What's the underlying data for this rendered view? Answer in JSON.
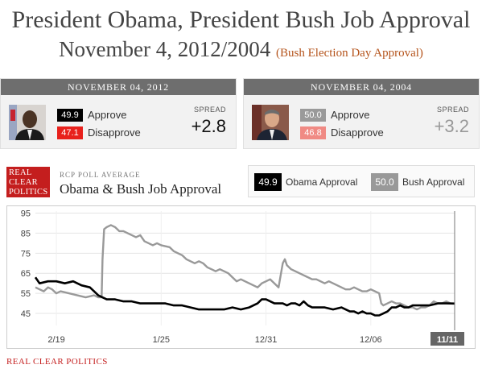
{
  "header": {
    "title_line1": "President Obama, President Bush Job Approval",
    "title_line2": "November 4, 2012/2004",
    "title_sub": "(Bush Election Day Approval)"
  },
  "cards": [
    {
      "date": "NOVEMBER 04, 2012",
      "approve_value": "49.9",
      "approve_label": "Approve",
      "disapprove_value": "47.1",
      "disapprove_label": "Disapprove",
      "spread_label": "SPREAD",
      "spread_value": "+2.8"
    },
    {
      "date": "NOVEMBER 04, 2004",
      "approve_value": "50.0",
      "approve_label": "Approve",
      "disapprove_value": "46.8",
      "disapprove_label": "Disapprove",
      "spread_label": "SPREAD",
      "spread_value": "+3.2"
    }
  ],
  "brand": {
    "logo_line1": "REAL",
    "logo_line2": "CLEAR",
    "logo_line3": "POLITICS",
    "subtitle": "RCP POLL AVERAGE",
    "chart_title": "Obama & Bush Job Approval",
    "footer": "REAL CLEAR POLITICS"
  },
  "legend": [
    {
      "value": "49.9",
      "label": "Obama Approval",
      "color": "#000000"
    },
    {
      "value": "50.0",
      "label": "Bush Approval",
      "color": "#999999"
    }
  ],
  "colors": {
    "accent": "#c41e1e",
    "disapprove_obama": "#e8211c",
    "disapprove_bush": "#f08a84",
    "bush_approve_box": "#9a9a9a",
    "obama_approve_box": "#000000"
  },
  "chart_data": {
    "type": "line",
    "x_ticks": [
      "2/19",
      "1/25",
      "12/31",
      "12/06",
      "11/11"
    ],
    "y_ticks": [
      45,
      55,
      65,
      75,
      85,
      95
    ],
    "ylim": [
      39,
      96
    ],
    "x_range": [
      0,
      100
    ],
    "x_tick_positions": [
      5,
      30,
      55,
      80,
      100
    ],
    "grid": true,
    "series": [
      {
        "name": "Obama Approval",
        "color": "#000000",
        "points": [
          [
            0,
            63
          ],
          [
            1,
            60
          ],
          [
            3,
            61
          ],
          [
            5,
            61
          ],
          [
            7,
            60
          ],
          [
            9,
            61
          ],
          [
            11,
            59
          ],
          [
            13,
            58
          ],
          [
            14,
            56
          ],
          [
            15,
            54
          ],
          [
            17,
            52
          ],
          [
            19,
            52
          ],
          [
            21,
            51
          ],
          [
            23,
            51
          ],
          [
            25,
            50
          ],
          [
            27,
            50
          ],
          [
            29,
            50
          ],
          [
            31,
            50
          ],
          [
            33,
            49
          ],
          [
            35,
            49
          ],
          [
            37,
            48
          ],
          [
            39,
            47
          ],
          [
            41,
            47
          ],
          [
            43,
            47
          ],
          [
            45,
            47
          ],
          [
            47,
            48
          ],
          [
            49,
            47
          ],
          [
            51,
            48
          ],
          [
            53,
            50
          ],
          [
            54,
            52
          ],
          [
            55,
            52
          ],
          [
            56,
            51
          ],
          [
            57,
            50
          ],
          [
            58,
            50
          ],
          [
            59,
            50
          ],
          [
            60,
            49
          ],
          [
            61,
            50
          ],
          [
            62,
            50
          ],
          [
            63,
            49
          ],
          [
            64,
            51
          ],
          [
            65,
            49
          ],
          [
            66,
            48
          ],
          [
            67,
            48
          ],
          [
            69,
            48
          ],
          [
            71,
            47
          ],
          [
            73,
            48
          ],
          [
            74,
            47
          ],
          [
            75,
            46
          ],
          [
            76,
            46
          ],
          [
            77,
            45
          ],
          [
            78,
            46
          ],
          [
            79,
            45
          ],
          [
            80,
            45
          ],
          [
            81,
            44
          ],
          [
            82,
            44
          ],
          [
            83,
            45
          ],
          [
            84,
            46
          ],
          [
            85,
            48
          ],
          [
            86,
            48
          ],
          [
            87,
            49
          ],
          [
            88,
            48
          ],
          [
            89,
            48
          ],
          [
            90,
            49
          ],
          [
            92,
            49
          ],
          [
            94,
            49
          ],
          [
            96,
            50
          ],
          [
            98,
            50
          ],
          [
            100,
            49.9
          ]
        ]
      },
      {
        "name": "Bush Approval",
        "color": "#999999",
        "points": [
          [
            0,
            58
          ],
          [
            1,
            57
          ],
          [
            2,
            56
          ],
          [
            3,
            58
          ],
          [
            4,
            57
          ],
          [
            5,
            55
          ],
          [
            6,
            56
          ],
          [
            8,
            55
          ],
          [
            10,
            54
          ],
          [
            12,
            53
          ],
          [
            14,
            54
          ],
          [
            15,
            53
          ],
          [
            15.8,
            53
          ],
          [
            16,
            72
          ],
          [
            16.4,
            87
          ],
          [
            17,
            88
          ],
          [
            18,
            89
          ],
          [
            19,
            88
          ],
          [
            20,
            86
          ],
          [
            21,
            86
          ],
          [
            22,
            85
          ],
          [
            23,
            84
          ],
          [
            24,
            83
          ],
          [
            25,
            84
          ],
          [
            26,
            81
          ],
          [
            27,
            80
          ],
          [
            28,
            79
          ],
          [
            29,
            80
          ],
          [
            30,
            79
          ],
          [
            32,
            78
          ],
          [
            33,
            76
          ],
          [
            34,
            75
          ],
          [
            35,
            74
          ],
          [
            36,
            72
          ],
          [
            37,
            71
          ],
          [
            38,
            70
          ],
          [
            39,
            71
          ],
          [
            40,
            70
          ],
          [
            41,
            68
          ],
          [
            42,
            67
          ],
          [
            43,
            66
          ],
          [
            44,
            67
          ],
          [
            45,
            66
          ],
          [
            46,
            65
          ],
          [
            47,
            63
          ],
          [
            48,
            61
          ],
          [
            49,
            62
          ],
          [
            50,
            61
          ],
          [
            51,
            60
          ],
          [
            52,
            59
          ],
          [
            53,
            58
          ],
          [
            54,
            60
          ],
          [
            55,
            61
          ],
          [
            56,
            62
          ],
          [
            57,
            60
          ],
          [
            58,
            58
          ],
          [
            58.5,
            64
          ],
          [
            59,
            70
          ],
          [
            59.5,
            72
          ],
          [
            60,
            69
          ],
          [
            61,
            67
          ],
          [
            62,
            66
          ],
          [
            63,
            65
          ],
          [
            64,
            64
          ],
          [
            65,
            63
          ],
          [
            66,
            62
          ],
          [
            67,
            62
          ],
          [
            68,
            61
          ],
          [
            69,
            60
          ],
          [
            70,
            61
          ],
          [
            71,
            60
          ],
          [
            72,
            59
          ],
          [
            73,
            58
          ],
          [
            74,
            57
          ],
          [
            75,
            57
          ],
          [
            76,
            58
          ],
          [
            77,
            57
          ],
          [
            78,
            56
          ],
          [
            79,
            56
          ],
          [
            80,
            57
          ],
          [
            81,
            56
          ],
          [
            82,
            55
          ],
          [
            82.5,
            50
          ],
          [
            83,
            49
          ],
          [
            84,
            50
          ],
          [
            85,
            51
          ],
          [
            86,
            50
          ],
          [
            87,
            50
          ],
          [
            88,
            49
          ],
          [
            89,
            48
          ],
          [
            90,
            48
          ],
          [
            91,
            47
          ],
          [
            92,
            48
          ],
          [
            93,
            48
          ],
          [
            94,
            49
          ],
          [
            95,
            51
          ],
          [
            96,
            50
          ],
          [
            97,
            50
          ],
          [
            98,
            51
          ],
          [
            99,
            50
          ],
          [
            100,
            50
          ]
        ]
      }
    ]
  }
}
